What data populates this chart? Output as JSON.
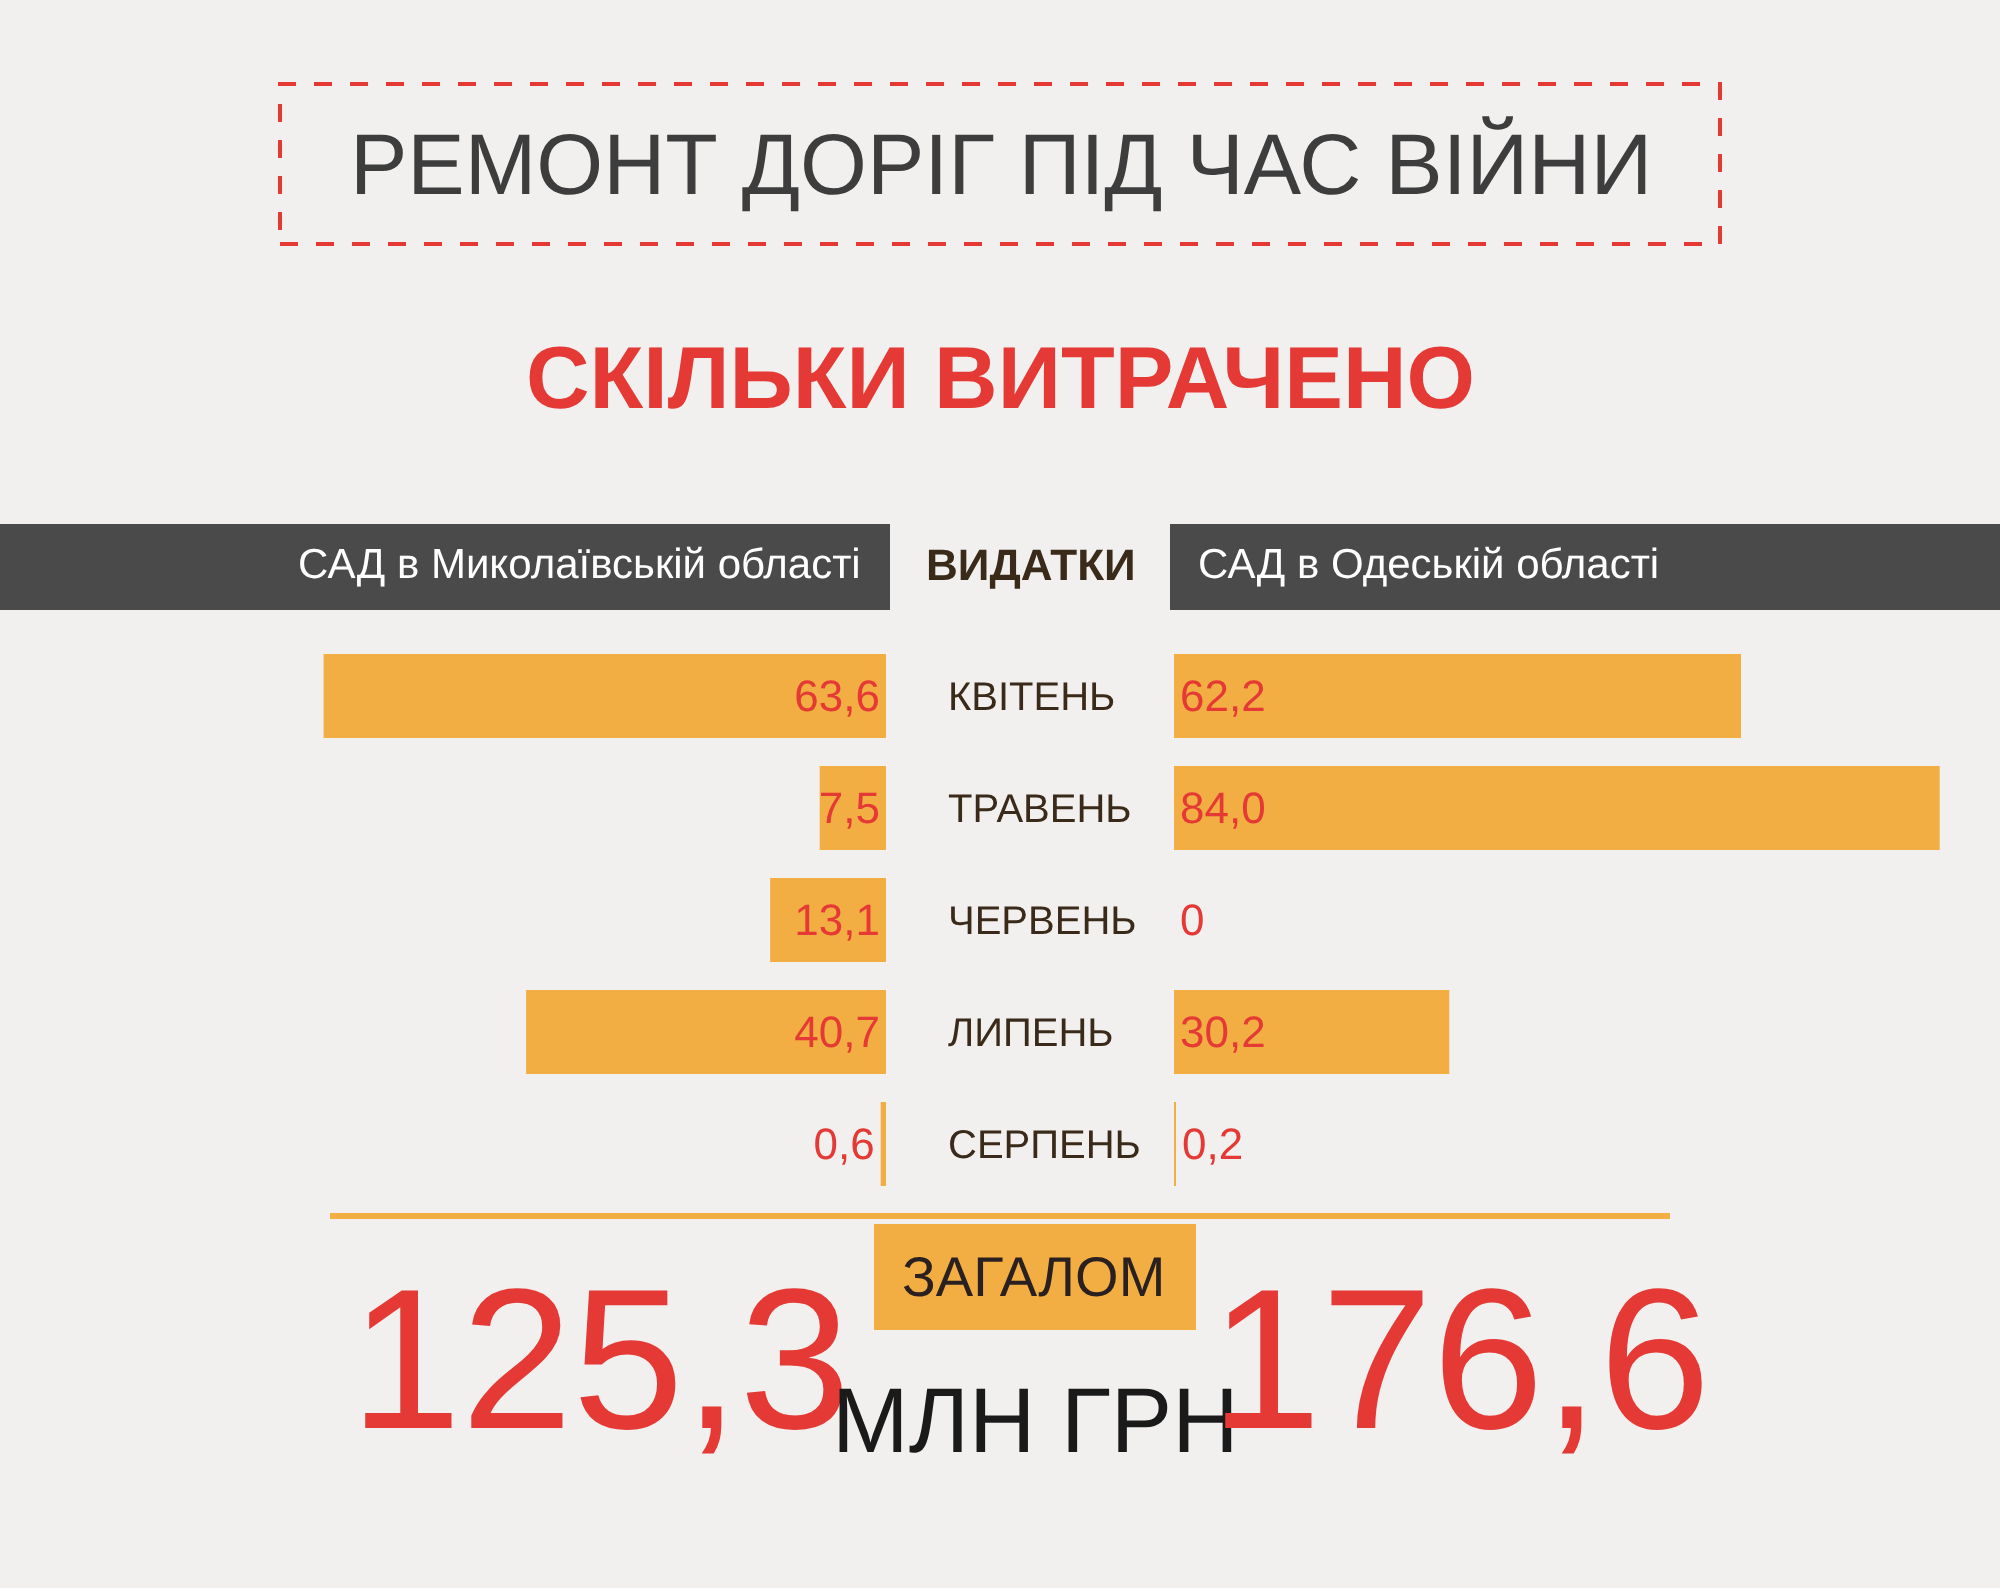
{
  "chart_data": [
    {
      "type": "bar",
      "orientation": "horizontal",
      "title": "РЕМОНТ ДОРІГ ПІД ЧАС ВІЙНИ",
      "subtitle": "СКІЛЬКИ ВИТРАЧЕНО",
      "xlabel": "САД в Миколаївській області",
      "ylabel": "ВИДАТКИ",
      "categories": [
        "КВІТЕНЬ",
        "ТРАВЕНЬ",
        "ЧЕРВЕНЬ",
        "ЛИПЕНЬ",
        "СЕРПЕНЬ"
      ],
      "values": [
        63.6,
        7.5,
        13.1,
        40.7,
        0.6
      ],
      "value_labels": [
        "63,6",
        "7,5",
        "13,1",
        "40,7",
        "0,6"
      ],
      "color": "#f2ae42",
      "tick_labels": "y",
      "annotations": [
        "125,3",
        "ЗАГАЛОМ",
        "МЛН ГРН"
      ]
    },
    {
      "type": "bar",
      "orientation": "horizontal",
      "xlabel": "САД в Одеській області",
      "values": [
        62.2,
        84.0,
        0,
        30.2,
        0.2
      ],
      "value_labels": [
        "62,2",
        "84,0",
        "0",
        "30,2",
        "0,2"
      ],
      "color": "#f2ae42",
      "tick_labels": false,
      "annotations": [
        "176,6"
      ]
    }
  ]
}
